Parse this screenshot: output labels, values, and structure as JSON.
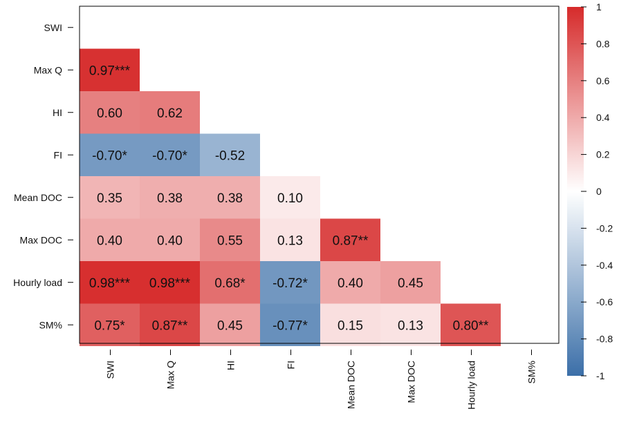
{
  "chart_data": {
    "type": "heatmap",
    "variables": [
      "SWI",
      "Max Q",
      "HI",
      "FI",
      "Mean DOC",
      "Max DOC",
      "Hourly load",
      "SM%"
    ],
    "cells": [
      {
        "row": "Max Q",
        "col": "SWI",
        "value": 0.97,
        "label": "0.97***"
      },
      {
        "row": "HI",
        "col": "SWI",
        "value": 0.6,
        "label": "0.60"
      },
      {
        "row": "HI",
        "col": "Max Q",
        "value": 0.62,
        "label": "0.62"
      },
      {
        "row": "FI",
        "col": "SWI",
        "value": -0.7,
        "label": "-0.70*"
      },
      {
        "row": "FI",
        "col": "Max Q",
        "value": -0.7,
        "label": "-0.70*"
      },
      {
        "row": "FI",
        "col": "HI",
        "value": -0.52,
        "label": "-0.52"
      },
      {
        "row": "Mean DOC",
        "col": "SWI",
        "value": 0.35,
        "label": "0.35"
      },
      {
        "row": "Mean DOC",
        "col": "Max Q",
        "value": 0.38,
        "label": "0.38"
      },
      {
        "row": "Mean DOC",
        "col": "HI",
        "value": 0.38,
        "label": "0.38"
      },
      {
        "row": "Mean DOC",
        "col": "FI",
        "value": 0.1,
        "label": "0.10"
      },
      {
        "row": "Max DOC",
        "col": "SWI",
        "value": 0.4,
        "label": "0.40"
      },
      {
        "row": "Max DOC",
        "col": "Max Q",
        "value": 0.4,
        "label": "0.40"
      },
      {
        "row": "Max DOC",
        "col": "HI",
        "value": 0.55,
        "label": "0.55"
      },
      {
        "row": "Max DOC",
        "col": "FI",
        "value": 0.13,
        "label": "0.13"
      },
      {
        "row": "Max DOC",
        "col": "Mean DOC",
        "value": 0.87,
        "label": "0.87**"
      },
      {
        "row": "Hourly load",
        "col": "SWI",
        "value": 0.98,
        "label": "0.98***"
      },
      {
        "row": "Hourly load",
        "col": "Max Q",
        "value": 0.98,
        "label": "0.98***"
      },
      {
        "row": "Hourly load",
        "col": "HI",
        "value": 0.68,
        "label": "0.68*"
      },
      {
        "row": "Hourly load",
        "col": "FI",
        "value": -0.72,
        "label": "-0.72*"
      },
      {
        "row": "Hourly load",
        "col": "Mean DOC",
        "value": 0.4,
        "label": "0.40"
      },
      {
        "row": "Hourly load",
        "col": "Max DOC",
        "value": 0.45,
        "label": "0.45"
      },
      {
        "row": "SM%",
        "col": "SWI",
        "value": 0.75,
        "label": "0.75*"
      },
      {
        "row": "SM%",
        "col": "Max Q",
        "value": 0.87,
        "label": "0.87**"
      },
      {
        "row": "SM%",
        "col": "HI",
        "value": 0.45,
        "label": "0.45"
      },
      {
        "row": "SM%",
        "col": "FI",
        "value": -0.77,
        "label": "-0.77*"
      },
      {
        "row": "SM%",
        "col": "Mean DOC",
        "value": 0.15,
        "label": "0.15"
      },
      {
        "row": "SM%",
        "col": "Max DOC",
        "value": 0.13,
        "label": "0.13"
      },
      {
        "row": "SM%",
        "col": "Hourly load",
        "value": 0.8,
        "label": "0.80**"
      }
    ],
    "colorbar": {
      "range": [
        -1,
        1
      ],
      "ticks": [
        "1",
        "0.8",
        "0.6",
        "0.4",
        "0.2",
        "0",
        "-0.2",
        "-0.4",
        "-0.6",
        "-0.8",
        "-1"
      ],
      "low_color": "#3b6fa8",
      "mid_color": "#ffffff",
      "high_color": "#d62b2b"
    },
    "title": "",
    "xlabel": "",
    "ylabel": ""
  }
}
